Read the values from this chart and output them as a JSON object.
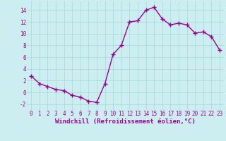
{
  "x": [
    0,
    1,
    2,
    3,
    4,
    5,
    6,
    7,
    8,
    9,
    10,
    11,
    12,
    13,
    14,
    15,
    16,
    17,
    18,
    19,
    20,
    21,
    22,
    23
  ],
  "y": [
    2.8,
    1.5,
    1.0,
    0.5,
    0.3,
    -0.5,
    -0.8,
    -1.5,
    -1.7,
    1.5,
    6.5,
    8.0,
    12.0,
    12.2,
    14.0,
    14.5,
    12.5,
    11.5,
    11.8,
    11.5,
    10.1,
    10.3,
    9.5,
    7.2
  ],
  "line_color": "#990099",
  "marker": "+",
  "markersize": 4,
  "linewidth": 1.0,
  "markeredgewidth": 1.0,
  "xlabel": "Windchill (Refroidissement éolien,°C)",
  "xlabel_fontsize": 6.5,
  "xlim": [
    -0.5,
    23.5
  ],
  "ylim": [
    -3,
    15.5
  ],
  "yticks": [
    -2,
    0,
    2,
    4,
    6,
    8,
    10,
    12,
    14
  ],
  "xticks": [
    0,
    1,
    2,
    3,
    4,
    5,
    6,
    7,
    8,
    9,
    10,
    11,
    12,
    13,
    14,
    15,
    16,
    17,
    18,
    19,
    20,
    21,
    22,
    23
  ],
  "background_color": "#cceef0",
  "grid_color": "#aadddd",
  "tick_color": "#990099",
  "tick_fontsize": 5.5,
  "spine_color": "#999999",
  "fig_width": 3.2,
  "fig_height": 2.0,
  "dpi": 100
}
